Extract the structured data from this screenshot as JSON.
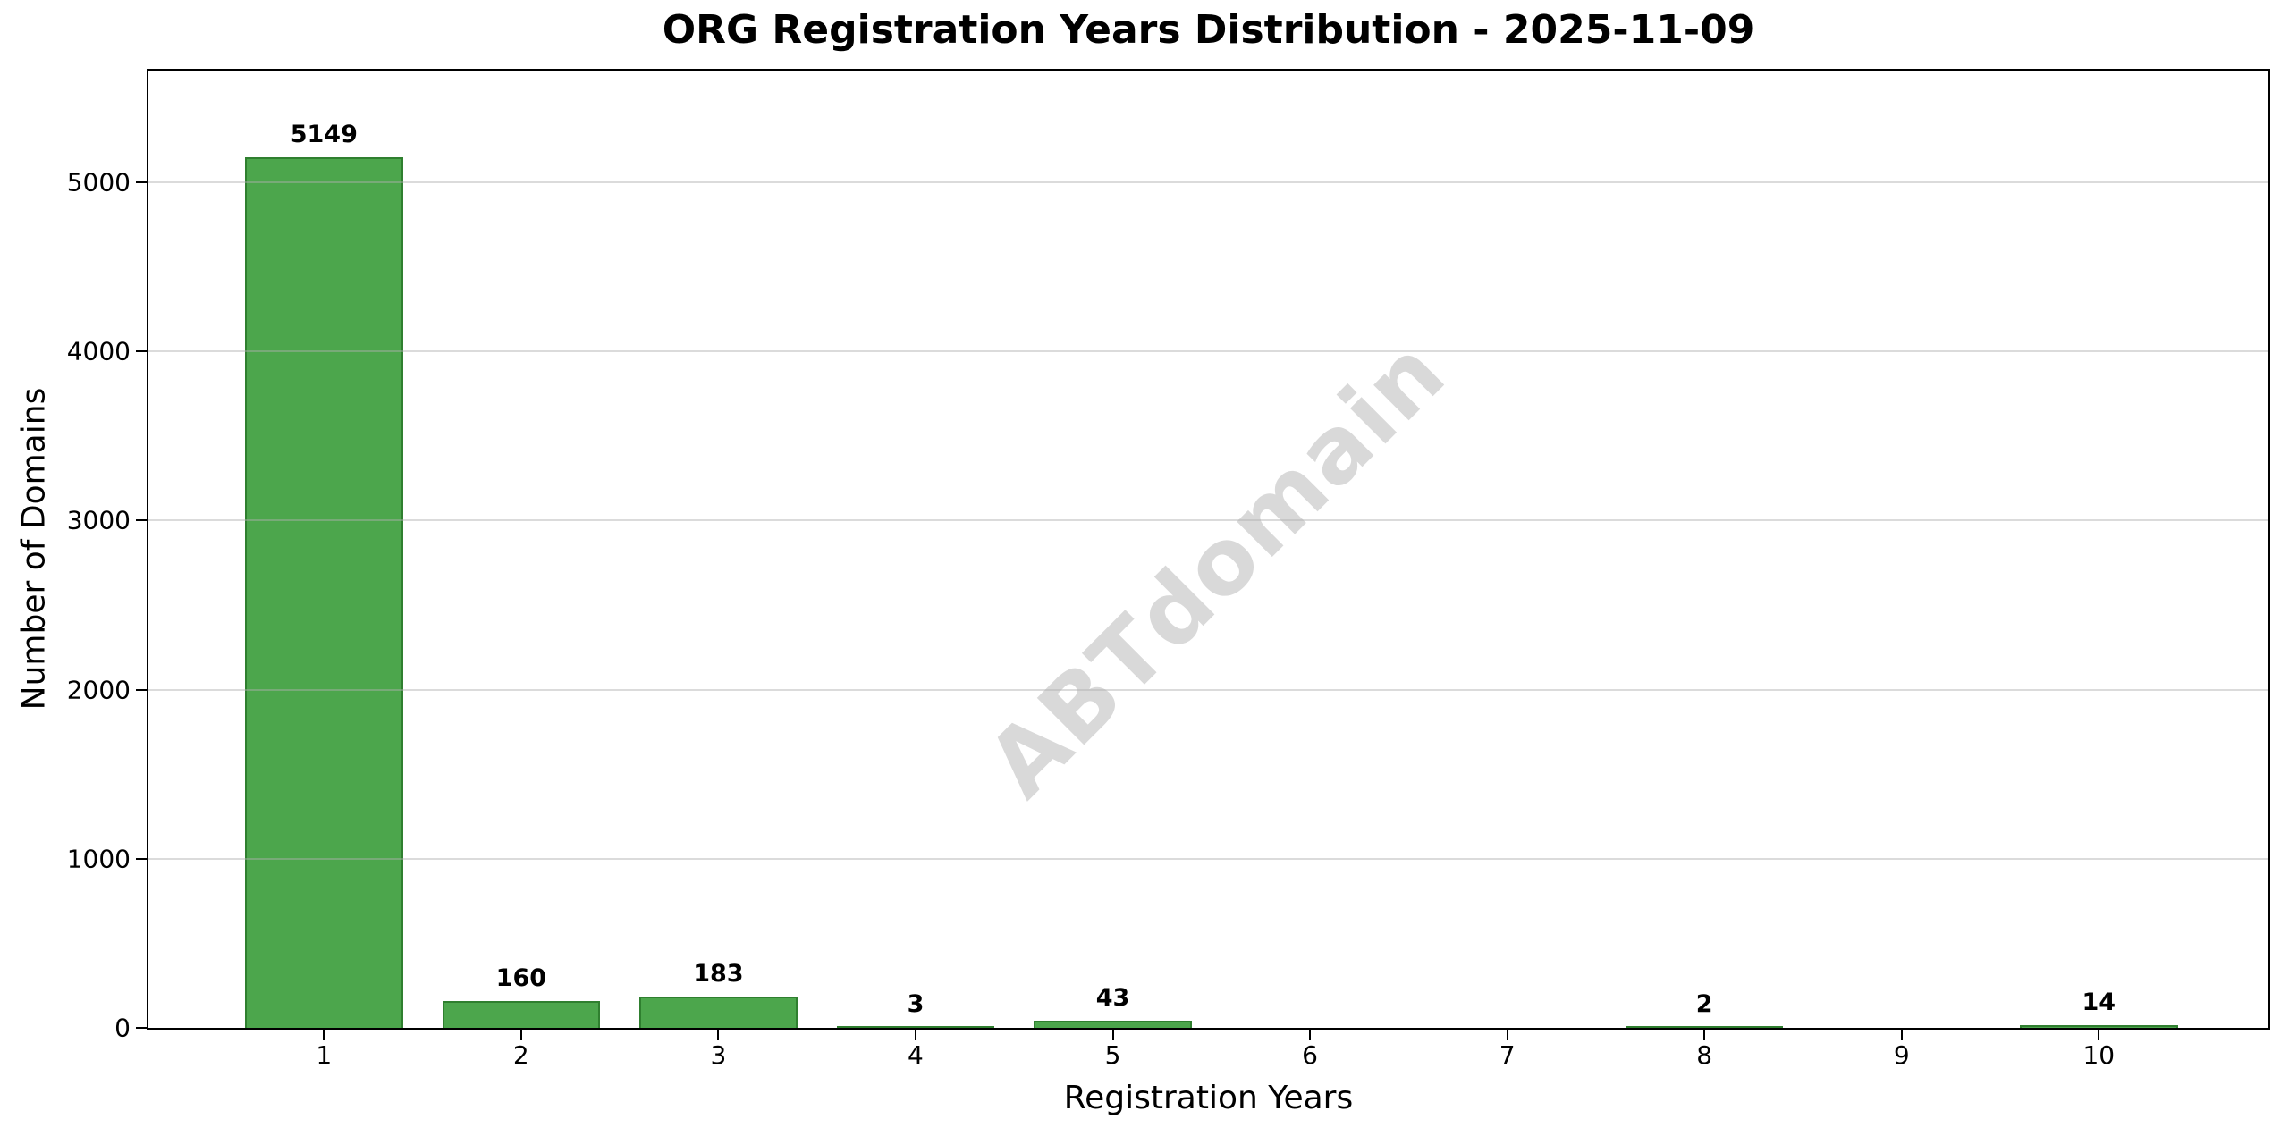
{
  "watermark": "ABTdomain",
  "chart_data": {
    "type": "bar",
    "title": "ORG Registration Years Distribution - 2025-11-09",
    "xlabel": "Registration Years",
    "ylabel": "Number of Domains",
    "categories": [
      "1",
      "2",
      "3",
      "4",
      "5",
      "6",
      "7",
      "8",
      "9",
      "10"
    ],
    "values": [
      5149,
      160,
      183,
      3,
      43,
      0,
      0,
      2,
      0,
      14
    ],
    "bar_value_labels": [
      "5149",
      "160",
      "183",
      "3",
      "43",
      "",
      "",
      "2",
      "",
      "14"
    ],
    "yticks": [
      0,
      1000,
      2000,
      3000,
      4000,
      5000
    ],
    "ytick_labels": [
      "0",
      "1000",
      "2000",
      "3000",
      "4000",
      "5000"
    ],
    "ylim": [
      0,
      5660
    ],
    "xlim": [
      0.11,
      10.86
    ],
    "bar_width": 0.8,
    "grid": true,
    "legend": "none",
    "colors": {
      "bar_fill": "#4ca64c",
      "bar_edge": "#2f7f2f",
      "grid": "#b0b0b0",
      "watermark": "#d9d9d9",
      "text": "#000000",
      "background": "#ffffff"
    }
  }
}
